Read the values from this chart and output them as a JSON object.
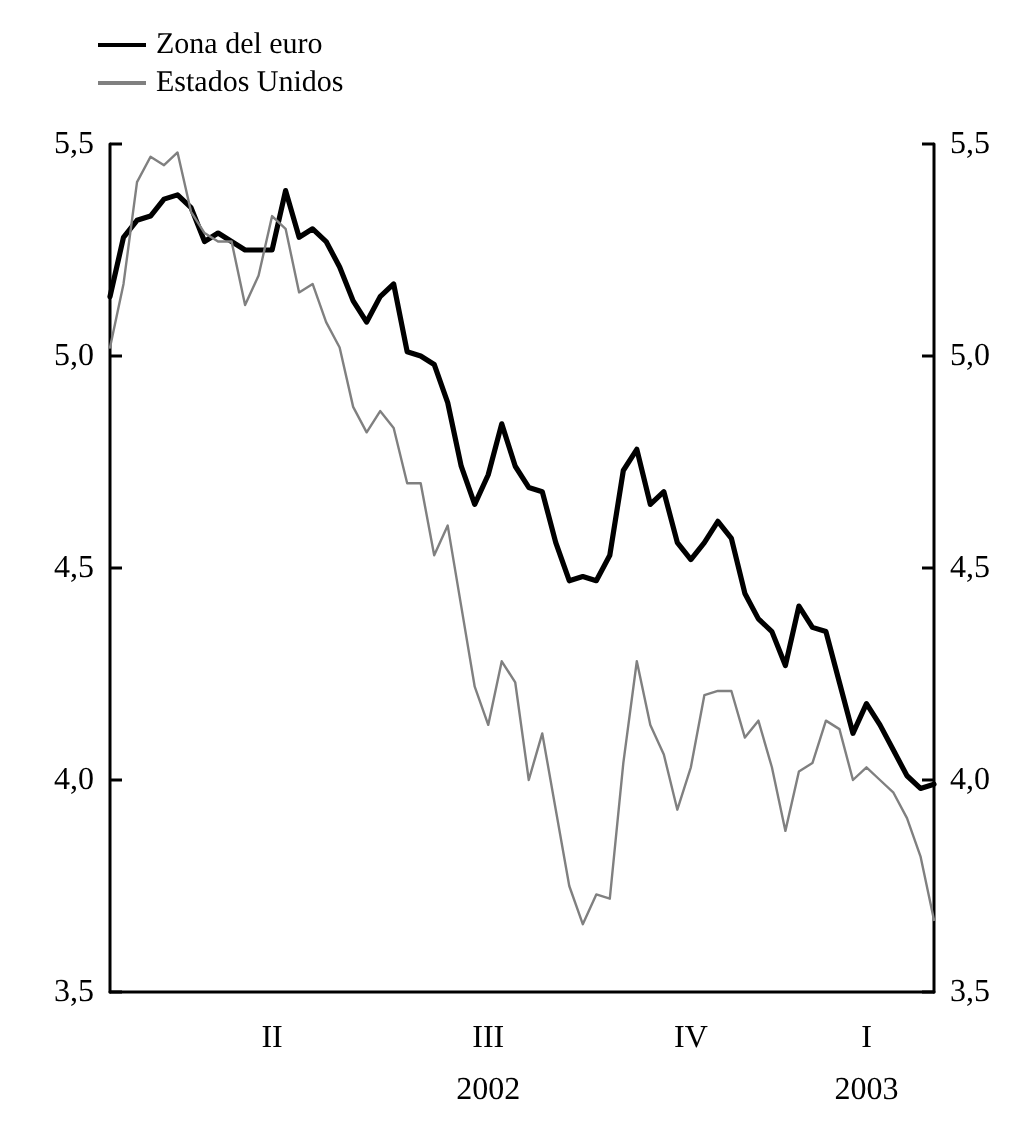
{
  "chart_data": {
    "type": "line",
    "legend": "top left",
    "grid": false,
    "marker": "none",
    "line_style": "solid",
    "categories": [
      null,
      null,
      null,
      null,
      null,
      null,
      null,
      null,
      null,
      null,
      null,
      null,
      "II",
      null,
      null,
      null,
      null,
      null,
      null,
      null,
      null,
      null,
      null,
      null,
      null,
      null,
      null,
      null,
      "III\n2002",
      null,
      null,
      null,
      null,
      null,
      null,
      null,
      null,
      null,
      null,
      null,
      null,
      null,
      null,
      "IV",
      null,
      null,
      null,
      null,
      null,
      null,
      null,
      null,
      null,
      null,
      null,
      null,
      "I\n2003",
      null,
      null,
      null,
      null,
      null
    ],
    "ylim": [
      3.5,
      5.5
    ],
    "yticks": [
      {
        "value": 3.5,
        "label": "3,5"
      },
      {
        "value": 4.0,
        "label": "4,0"
      },
      {
        "value": 4.5,
        "label": "4,5"
      },
      {
        "value": 5.0,
        "label": "5,0"
      },
      {
        "value": 5.5,
        "label": "5,5"
      }
    ],
    "y2lim": [
      3.5,
      5.5
    ],
    "y2ticks": [
      {
        "value": 3.5,
        "label": "3,5"
      },
      {
        "value": 4.0,
        "label": "4,0"
      },
      {
        "value": 4.5,
        "label": "4,5"
      },
      {
        "value": 5.0,
        "label": "5,0"
      },
      {
        "value": 5.5,
        "label": "5,5"
      }
    ],
    "series": [
      {
        "name": "Zona del euro",
        "color": "#000000",
        "values": [
          5.14,
          5.28,
          5.32,
          5.33,
          5.37,
          5.38,
          5.35,
          5.27,
          5.29,
          5.27,
          5.25,
          5.25,
          5.25,
          5.39,
          5.28,
          5.3,
          5.27,
          5.21,
          5.13,
          5.08,
          5.14,
          5.17,
          5.01,
          5.0,
          4.98,
          4.89,
          4.74,
          4.65,
          4.72,
          4.84,
          4.74,
          4.69,
          4.68,
          4.56,
          4.47,
          4.48,
          4.47,
          4.53,
          4.73,
          4.78,
          4.65,
          4.68,
          4.56,
          4.52,
          4.56,
          4.61,
          4.57,
          4.44,
          4.38,
          4.35,
          4.27,
          4.41,
          4.36,
          4.35,
          4.23,
          4.11,
          4.18,
          4.13,
          4.07,
          4.01,
          3.98,
          3.99
        ]
      },
      {
        "name": "Estados Unidos",
        "color": "#808080",
        "values": [
          5.02,
          5.17,
          5.41,
          5.47,
          5.45,
          5.48,
          5.34,
          5.29,
          5.27,
          5.27,
          5.12,
          5.19,
          5.33,
          5.3,
          5.15,
          5.17,
          5.08,
          5.02,
          4.88,
          4.82,
          4.87,
          4.83,
          4.7,
          4.7,
          4.53,
          4.6,
          4.41,
          4.22,
          4.13,
          4.28,
          4.23,
          4.0,
          4.11,
          3.93,
          3.75,
          3.66,
          3.73,
          3.72,
          4.04,
          4.28,
          4.13,
          4.06,
          3.93,
          4.03,
          4.2,
          4.21,
          4.21,
          4.1,
          4.14,
          4.03,
          3.88,
          4.02,
          4.04,
          4.14,
          4.12,
          4.0,
          4.03,
          4.0,
          3.97,
          3.91,
          3.82,
          3.67
        ]
      }
    ]
  }
}
